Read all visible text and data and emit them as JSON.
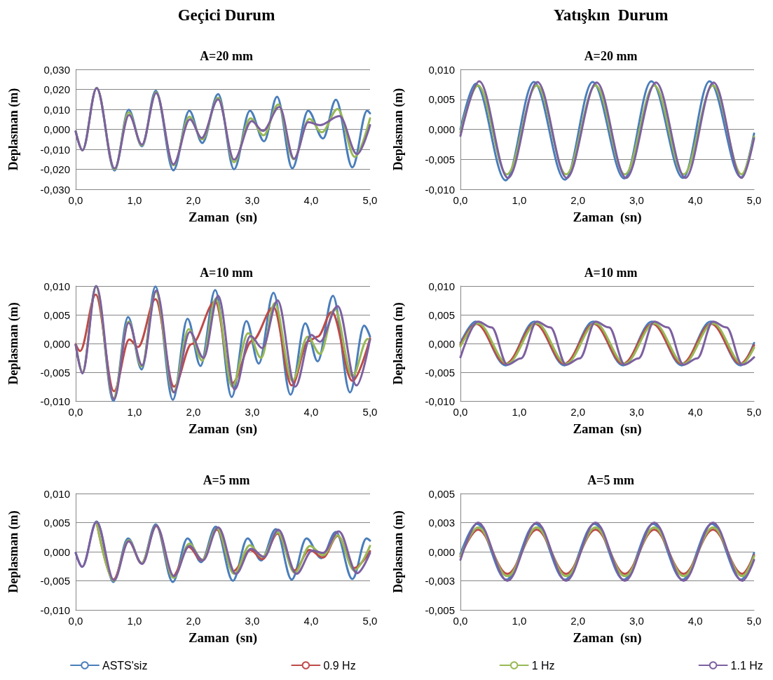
{
  "chart_data": [
    {
      "type": "line",
      "title": "Geçici Durum",
      "subtitle": "A=20 mm",
      "xlabel": "Zaman  (sn)",
      "ylabel": "Deplasman (m)",
      "xlim": [
        0,
        5
      ],
      "ylim": [
        -0.03,
        0.03
      ],
      "xticks": [
        {
          "value": 0,
          "label": "0,0"
        },
        {
          "value": 1,
          "label": "1,0"
        },
        {
          "value": 2,
          "label": "2,0"
        },
        {
          "value": 3,
          "label": "3,0"
        },
        {
          "value": 4,
          "label": "4,0"
        },
        {
          "value": 5,
          "label": "5,0"
        }
      ],
      "yticks": [
        {
          "value": -0.03,
          "label": "-0,030"
        },
        {
          "value": -0.02,
          "label": "-0,020"
        },
        {
          "value": -0.01,
          "label": "-0,010"
        },
        {
          "value": 0,
          "label": "0,000"
        },
        {
          "value": 0.01,
          "label": "0,010"
        },
        {
          "value": 0.02,
          "label": "0,020"
        },
        {
          "value": 0.03,
          "label": "0,030"
        }
      ],
      "grid": "y",
      "series": [
        {
          "color": "#4a7ebb",
          "x": [
            0,
            0.115,
            0.356,
            0.66,
            0.9,
            1.125,
            1.36,
            1.66,
            1.93,
            2.15,
            2.42,
            2.69,
            2.96,
            3.2,
            3.42,
            3.68,
            3.95,
            4.2,
            4.42,
            4.7,
            4.95,
            5
          ],
          "values": [
            -0.001,
            -0.0105,
            0.0208,
            -0.0206,
            0.0098,
            -0.0085,
            0.0193,
            -0.0205,
            0.0093,
            -0.0068,
            0.0176,
            -0.02,
            0.0093,
            -0.006,
            0.0163,
            -0.0195,
            0.0093,
            -0.0046,
            0.0148,
            -0.019,
            0.0093,
            0.008
          ]
        },
        {
          "color": "#98b954",
          "x": [
            0,
            0.115,
            0.356,
            0.66,
            0.9,
            1.125,
            1.365,
            1.66,
            1.93,
            2.15,
            2.42,
            2.69,
            2.97,
            3.19,
            3.44,
            3.7,
            3.97,
            4.18,
            4.45,
            4.74,
            5
          ],
          "values": [
            -0.001,
            -0.0105,
            0.0207,
            -0.02,
            0.0085,
            -0.008,
            0.0185,
            -0.018,
            0.0063,
            -0.005,
            0.0158,
            -0.0165,
            0.0055,
            -0.003,
            0.0125,
            -0.015,
            0.0053,
            -0.0015,
            0.0102,
            -0.0138,
            0.0055
          ]
        },
        {
          "color": "#7d60a0",
          "x": [
            0,
            0.115,
            0.356,
            0.66,
            0.907,
            1.125,
            1.367,
            1.66,
            1.94,
            2.14,
            2.42,
            2.69,
            2.99,
            3.18,
            3.46,
            3.71,
            3.95,
            4.15,
            4.48,
            4.78,
            5
          ],
          "values": [
            -0.001,
            -0.0105,
            0.0206,
            -0.0196,
            0.0072,
            -0.0076,
            0.0182,
            -0.0175,
            0.005,
            -0.0043,
            0.015,
            -0.0152,
            0.0041,
            -0.0008,
            0.0112,
            -0.0147,
            0.0036,
            0.0021,
            0.0067,
            -0.0124,
            0.0021
          ]
        }
      ]
    },
    {
      "type": "line",
      "title": "Yatışkın  Durum",
      "subtitle": "A=20 mm",
      "xlabel": "Zaman  (sn)",
      "ylabel": "Deplasman (m)",
      "xlim": [
        0,
        5
      ],
      "ylim": [
        -0.01,
        0.01
      ],
      "xticks": [
        {
          "value": 0,
          "label": "0,0"
        },
        {
          "value": 1,
          "label": "1,0"
        },
        {
          "value": 2,
          "label": "2,0"
        },
        {
          "value": 3,
          "label": "3,0"
        },
        {
          "value": 4,
          "label": "4,0"
        },
        {
          "value": 5,
          "label": "5,0"
        }
      ],
      "yticks": [
        {
          "value": -0.01,
          "label": "-0,010"
        },
        {
          "value": -0.005,
          "label": "-0,005"
        },
        {
          "value": 0,
          "label": "0,000"
        },
        {
          "value": 0.005,
          "label": "0,005"
        },
        {
          "value": 0.01,
          "label": "0,010"
        }
      ],
      "grid": "y",
      "series": [
        {
          "color": "#4a7ebb",
          "x": [
            0,
            0.26,
            0.77,
            1.25,
            1.78,
            2.25,
            2.79,
            3.25,
            3.79,
            4.24,
            4.78,
            5
          ],
          "values": [
            0,
            0.0076,
            -0.0085,
            0.0079,
            -0.0084,
            0.0079,
            -0.0082,
            0.008,
            -0.0081,
            0.008,
            -0.008,
            -0.0007
          ]
        },
        {
          "color": "#98b954",
          "x": [
            0,
            0.3,
            0.79,
            1.3,
            1.8,
            2.3,
            2.8,
            3.3,
            3.8,
            4.3,
            4.79,
            5
          ],
          "values": [
            -0.0005,
            0.0073,
            -0.0075,
            0.0073,
            -0.0075,
            0.0073,
            -0.0075,
            0.0073,
            -0.0075,
            0.0073,
            -0.0075,
            -0.0012
          ]
        },
        {
          "color": "#7d60a0",
          "x": [
            0,
            0.32,
            0.81,
            1.31,
            1.81,
            2.32,
            2.82,
            3.33,
            3.83,
            4.31,
            4.79,
            5
          ],
          "values": [
            -0.0011,
            0.008,
            -0.0081,
            0.0079,
            -0.0081,
            0.0078,
            -0.0081,
            0.0078,
            -0.0081,
            0.0078,
            -0.0081,
            -0.0015
          ]
        }
      ]
    },
    {
      "type": "line",
      "title": "A=10 mm",
      "xlabel": "Zaman  (sn)",
      "ylabel": "Deplasman (m)",
      "xlim": [
        0,
        5
      ],
      "ylim": [
        -0.01,
        0.01
      ],
      "xticks": [
        {
          "value": 0,
          "label": "0,0"
        },
        {
          "value": 1,
          "label": "1,0"
        },
        {
          "value": 2,
          "label": "2,0"
        },
        {
          "value": 3,
          "label": "3,0"
        },
        {
          "value": 4,
          "label": "4,0"
        },
        {
          "value": 5,
          "label": "5,0"
        }
      ],
      "yticks": [
        {
          "value": -0.01,
          "label": "-0,010"
        },
        {
          "value": -0.005,
          "label": "-0,005"
        },
        {
          "value": 0,
          "label": "0,000"
        },
        {
          "value": 0.005,
          "label": "0,005"
        },
        {
          "value": 0.01,
          "label": "0,010"
        }
      ],
      "grid": "y",
      "series": [
        {
          "color": "#4a7ebb",
          "x": [
            0,
            0.115,
            0.345,
            0.64,
            0.89,
            1.12,
            1.355,
            1.65,
            1.9,
            2.12,
            2.37,
            2.65,
            2.9,
            3.11,
            3.36,
            3.65,
            3.9,
            4.11,
            4.37,
            4.66,
            4.9,
            5
          ],
          "values": [
            -0.0002,
            -0.005,
            0.01,
            -0.01,
            0.0046,
            -0.0045,
            0.0099,
            -0.0098,
            0.0043,
            -0.0039,
            0.0093,
            -0.0093,
            0.0039,
            -0.0035,
            0.0088,
            -0.0089,
            0.0035,
            -0.0031,
            0.0083,
            -0.0085,
            0.0031,
            0.0012
          ]
        },
        {
          "color": "#be4b48",
          "x": [
            0,
            0.075,
            0.34,
            0.65,
            0.91,
            1.06,
            1.355,
            1.67,
            1.97,
            2.37,
            2.66,
            3.0,
            3.36,
            3.67,
            3.95,
            4.11,
            4.35,
            4.7,
            5
          ],
          "values": [
            -0.0001,
            -0.0013,
            0.0085,
            -0.0083,
            0.0007,
            -0.0006,
            0.0077,
            -0.0075,
            -0.0001,
            0.0073,
            -0.0069,
            0.0005,
            0.0063,
            -0.0073,
            0.0004,
            0.0012,
            0.0055,
            -0.0065,
            0.0009
          ]
        },
        {
          "color": "#98b954",
          "x": [
            0,
            0.115,
            0.345,
            0.64,
            0.9,
            1.12,
            1.36,
            1.66,
            1.92,
            2.15,
            2.38,
            2.66,
            2.93,
            3.15,
            3.38,
            3.68,
            3.94,
            4.15,
            4.4,
            4.7,
            4.96,
            5
          ],
          "values": [
            -0.0002,
            -0.005,
            0.0099,
            -0.0095,
            0.0038,
            -0.004,
            0.009,
            -0.0085,
            0.0025,
            -0.003,
            0.0078,
            -0.0075,
            0.0018,
            -0.0025,
            0.007,
            -0.0065,
            0.0012,
            -0.0018,
            0.006,
            -0.0057,
            0.0008,
            0.0006
          ]
        },
        {
          "color": "#7d60a0",
          "x": [
            0,
            0.115,
            0.35,
            0.65,
            0.9,
            1.13,
            1.37,
            1.67,
            1.94,
            2.17,
            2.42,
            2.7,
            2.97,
            3.17,
            3.43,
            3.73,
            4.0,
            4.15,
            4.45,
            4.77,
            5
          ],
          "values": [
            -0.0002,
            -0.0052,
            0.01,
            -0.0097,
            0.0036,
            -0.0038,
            0.0092,
            -0.0085,
            0.002,
            -0.0025,
            0.0083,
            -0.008,
            0.0013,
            -0.0008,
            0.0075,
            -0.0075,
            0.0015,
            0.0003,
            0.0065,
            -0.0073,
            0.0007
          ]
        }
      ]
    },
    {
      "type": "line",
      "title": "A=10 mm",
      "xlabel": "Zaman  (sn)",
      "ylabel": "Deplasman (m)",
      "xlim": [
        0,
        5
      ],
      "ylim": [
        -0.01,
        0.01
      ],
      "xticks": [
        {
          "value": 0,
          "label": "0,0"
        },
        {
          "value": 1,
          "label": "1,0"
        },
        {
          "value": 2,
          "label": "2,0"
        },
        {
          "value": 3,
          "label": "3,0"
        },
        {
          "value": 4,
          "label": "4,0"
        },
        {
          "value": 5,
          "label": "5,0"
        }
      ],
      "yticks": [
        {
          "value": -0.01,
          "label": "-0,010"
        },
        {
          "value": -0.005,
          "label": "-0,005"
        },
        {
          "value": 0,
          "label": "0,000"
        },
        {
          "value": 0.005,
          "label": "0,005"
        },
        {
          "value": 0.01,
          "label": "0,010"
        }
      ],
      "grid": "y",
      "series": [
        {
          "color": "#4a7ebb",
          "x": [
            0,
            0.26,
            0.77,
            1.26,
            1.77,
            2.26,
            2.77,
            3.26,
            3.77,
            4.26,
            4.77,
            5
          ],
          "values": [
            0.0001,
            0.0038,
            -0.0038,
            0.0038,
            -0.0038,
            0.0038,
            -0.0038,
            0.0038,
            -0.0038,
            0.0038,
            -0.0038,
            0.0001
          ]
        },
        {
          "color": "#be4b48",
          "x": [
            0,
            0.27,
            0.77,
            1.27,
            1.77,
            2.27,
            2.77,
            3.27,
            3.77,
            4.27,
            4.77,
            5
          ],
          "values": [
            -0.0002,
            0.0034,
            -0.0035,
            0.0034,
            -0.0035,
            0.0034,
            -0.0035,
            0.0034,
            -0.0035,
            0.0034,
            -0.0035,
            -0.0003
          ]
        },
        {
          "color": "#98b954",
          "x": [
            0,
            0.3,
            0.8,
            1.3,
            1.8,
            2.3,
            2.8,
            3.3,
            3.8,
            4.3,
            4.8,
            5
          ],
          "values": [
            -0.0005,
            0.0035,
            -0.0035,
            0.0035,
            -0.0035,
            0.0035,
            -0.0035,
            0.0035,
            -0.0035,
            0.0035,
            -0.0035,
            -0.0007
          ]
        },
        {
          "color": "#7d60a0",
          "x": [
            0,
            0.3,
            0.53,
            0.8,
            1.03,
            1.3,
            1.53,
            1.8,
            2.03,
            2.3,
            2.53,
            2.8,
            3.03,
            3.3,
            3.53,
            3.8,
            4.03,
            4.3,
            4.53,
            4.8,
            5
          ],
          "values": [
            -0.0024,
            0.0038,
            0.0028,
            -0.0037,
            -0.0026,
            0.0038,
            0.0028,
            -0.0037,
            -0.0026,
            0.0038,
            0.0028,
            -0.0037,
            -0.0026,
            0.0038,
            0.0028,
            -0.0037,
            -0.0026,
            0.0038,
            0.0028,
            -0.0037,
            -0.0024
          ]
        }
      ]
    },
    {
      "type": "line",
      "title": "A=5 mm",
      "xlabel": "Zaman  (sn)",
      "ylabel": "Deplasman (m)",
      "xlim": [
        0,
        5
      ],
      "ylim": [
        -0.01,
        0.01
      ],
      "xticks": [
        {
          "value": 0,
          "label": "0,0"
        },
        {
          "value": 1,
          "label": "1,0"
        },
        {
          "value": 2,
          "label": "2,0"
        },
        {
          "value": 3,
          "label": "3,0"
        },
        {
          "value": 4,
          "label": "4,0"
        },
        {
          "value": 5,
          "label": "5,0"
        }
      ],
      "yticks": [
        {
          "value": -0.01,
          "label": "-0,010"
        },
        {
          "value": -0.005,
          "label": "-0,005"
        },
        {
          "value": 0,
          "label": "0,000"
        },
        {
          "value": 0.005,
          "label": "0,005"
        },
        {
          "value": 0.01,
          "label": "0,010"
        }
      ],
      "grid": "y",
      "legend": "bottom",
      "series": [
        {
          "name": "ASTS'siz",
          "color": "#4a7ebb",
          "x": [
            0,
            0.11,
            0.355,
            0.64,
            0.89,
            1.12,
            1.36,
            1.65,
            1.9,
            2.13,
            2.38,
            2.67,
            2.92,
            3.15,
            3.4,
            3.67,
            3.92,
            4.17,
            4.42,
            4.7,
            4.94,
            5
          ],
          "values": [
            -0.0002,
            -0.0026,
            0.0052,
            -0.0052,
            0.0023,
            -0.002,
            0.0047,
            -0.0052,
            0.0023,
            -0.0018,
            0.0043,
            -0.005,
            0.0023,
            -0.0015,
            0.0039,
            -0.0048,
            0.0023,
            -0.0011,
            0.0034,
            -0.0047,
            0.0023,
            0.0019
          ]
        },
        {
          "name": "0.9 Hz",
          "color": "#be4b48",
          "x": [
            0.355,
            0.64,
            0.9,
            1.12,
            1.37,
            1.65,
            1.92,
            2.14,
            2.4,
            2.68,
            2.97,
            3.17,
            3.43,
            3.72,
            3.97,
            4.2,
            4.45,
            4.73,
            5
          ],
          "values": [
            0.0051,
            -0.0048,
            0.0018,
            -0.002,
            0.0044,
            -0.0042,
            0.0008,
            -0.0015,
            0.0038,
            -0.0033,
            0.0003,
            -0.0013,
            0.0031,
            -0.0032,
            0.0003,
            -0.001,
            0.0027,
            -0.0028,
            0.0001
          ]
        },
        {
          "name": "1 Hz",
          "color": "#98b954",
          "x": [
            0.355,
            0.645,
            0.9,
            1.12,
            1.37,
            1.66,
            1.93,
            2.15,
            2.4,
            2.69,
            2.96,
            3.17,
            3.43,
            3.72,
            3.98,
            4.2,
            4.45,
            4.73,
            5
          ],
          "values": [
            0.0051,
            -0.005,
            0.002,
            -0.002,
            0.0045,
            -0.0045,
            0.0014,
            -0.0014,
            0.004,
            -0.0038,
            0.0011,
            -0.0009,
            0.0033,
            -0.0036,
            0.001,
            -0.0006,
            0.0028,
            -0.0032,
            0.001
          ]
        },
        {
          "name": "1.1 Hz",
          "color": "#7d60a0",
          "x": [
            0,
            0.11,
            0.355,
            0.65,
            0.9,
            1.13,
            1.37,
            1.67,
            1.93,
            2.16,
            2.42,
            2.72,
            2.98,
            3.2,
            3.44,
            3.75,
            4.02,
            4.2,
            4.47,
            4.78,
            5
          ],
          "values": [
            -0.0002,
            -0.0026,
            0.0051,
            -0.0049,
            0.0018,
            -0.0021,
            0.0045,
            -0.0042,
            0.001,
            -0.0015,
            0.0042,
            -0.0038,
            0.0005,
            -0.0009,
            0.0038,
            -0.0038,
            0.0002,
            -0.0002,
            0.0035,
            -0.0037,
            -0.0002
          ]
        }
      ]
    },
    {
      "type": "line",
      "title": "A=5 mm",
      "xlabel": "Zaman  (sn)",
      "ylabel": "Deplasman (m)",
      "xlim": [
        0,
        5
      ],
      "ylim": [
        -0.005,
        0.005
      ],
      "xticks": [
        {
          "value": 0,
          "label": "0,0"
        },
        {
          "value": 1,
          "label": "1,0"
        },
        {
          "value": 2,
          "label": "2,0"
        },
        {
          "value": 3,
          "label": "3,0"
        },
        {
          "value": 4,
          "label": "4,0"
        },
        {
          "value": 5,
          "label": "5,0"
        }
      ],
      "yticks": [
        {
          "value": -0.005,
          "label": "-0,005"
        },
        {
          "value": -0.0025,
          "label": "-0,003"
        },
        {
          "value": 0,
          "label": "0,000"
        },
        {
          "value": 0.0025,
          "label": "0,003"
        },
        {
          "value": 0.005,
          "label": "0,005"
        }
      ],
      "grid": "y",
      "series": [
        {
          "color": "#4a7ebb",
          "x": [
            0,
            0.28,
            0.78,
            1.28,
            1.78,
            2.28,
            2.78,
            3.28,
            3.78,
            4.28,
            4.78,
            5
          ],
          "values": [
            -0.0002,
            0.0024,
            -0.0024,
            0.0024,
            -0.0024,
            0.0024,
            -0.0024,
            0.0024,
            -0.0024,
            0.0024,
            -0.0024,
            -0.0001
          ]
        },
        {
          "color": "#be4b48",
          "x": [
            0,
            0.3,
            0.8,
            1.3,
            1.8,
            2.3,
            2.8,
            3.3,
            3.8,
            4.3,
            4.8,
            5
          ],
          "values": [
            -0.0004,
            0.0019,
            -0.0019,
            0.0019,
            -0.0019,
            0.0019,
            -0.0019,
            0.0019,
            -0.0019,
            0.0019,
            -0.0019,
            -0.0003
          ]
        },
        {
          "color": "#98b954",
          "x": [
            0,
            0.3,
            0.8,
            1.3,
            1.8,
            2.3,
            2.8,
            3.3,
            3.8,
            4.3,
            4.8,
            5
          ],
          "values": [
            -0.0004,
            0.0021,
            -0.0021,
            0.0021,
            -0.0021,
            0.0021,
            -0.0021,
            0.0021,
            -0.0021,
            0.0021,
            -0.0021,
            -0.0004
          ]
        },
        {
          "color": "#7d60a0",
          "x": [
            0,
            0.3,
            0.8,
            1.3,
            1.8,
            2.3,
            2.8,
            3.3,
            3.8,
            4.3,
            4.8,
            5
          ],
          "values": [
            -0.0007,
            0.0025,
            -0.0025,
            0.0025,
            -0.0025,
            0.0025,
            -0.0025,
            0.0025,
            -0.0025,
            0.0025,
            -0.0025,
            -0.0007
          ]
        }
      ]
    }
  ]
}
